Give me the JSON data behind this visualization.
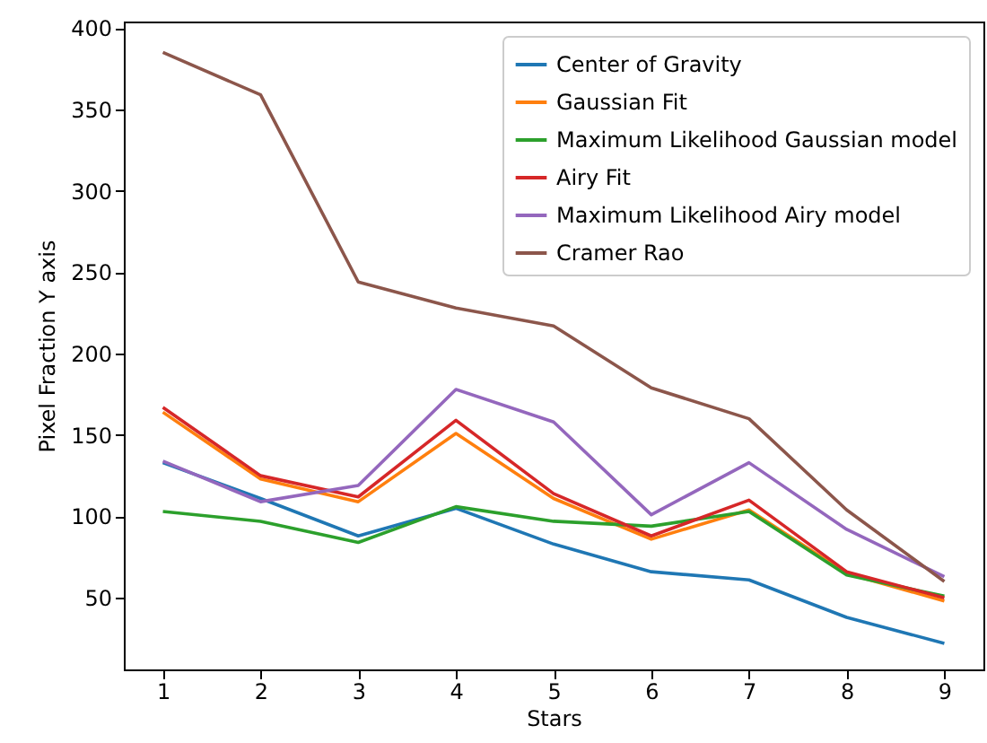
{
  "chart_data": {
    "type": "line",
    "xlabel": "Stars",
    "ylabel": "Pixel Fraction Y axis",
    "x": [
      1,
      2,
      3,
      4,
      5,
      6,
      7,
      8,
      9
    ],
    "xlim": [
      0.6,
      9.4
    ],
    "xticks": [
      1,
      2,
      3,
      4,
      5,
      6,
      7,
      8,
      9
    ],
    "ylim": [
      6,
      404
    ],
    "yticks": [
      50,
      100,
      150,
      200,
      250,
      300,
      350,
      400
    ],
    "legend": "top right",
    "grid": false,
    "series": [
      {
        "name": "Center of Gravity",
        "color": "#1f77b4",
        "values": [
          133,
          111,
          88,
          105,
          83,
          66,
          61,
          38,
          22
        ]
      },
      {
        "name": "Gaussian Fit",
        "color": "#ff7f0e",
        "values": [
          164,
          123,
          109,
          151,
          111,
          86,
          104,
          65,
          48
        ]
      },
      {
        "name": "Maximum Likelihood Gaussian model",
        "color": "#2ca02c",
        "values": [
          103,
          97,
          84,
          106,
          97,
          94,
          103,
          64,
          51
        ]
      },
      {
        "name": "Airy Fit",
        "color": "#d62728",
        "values": [
          167,
          125,
          112,
          159,
          114,
          88,
          110,
          66,
          50
        ]
      },
      {
        "name": "Maximum Likelihood Airy model",
        "color": "#9467bd",
        "values": [
          134,
          109,
          119,
          178,
          158,
          101,
          133,
          92,
          63
        ]
      },
      {
        "name": "Cramer Rao",
        "color": "#8c564b",
        "values": [
          385,
          359,
          244,
          228,
          217,
          179,
          160,
          104,
          60
        ]
      }
    ]
  }
}
